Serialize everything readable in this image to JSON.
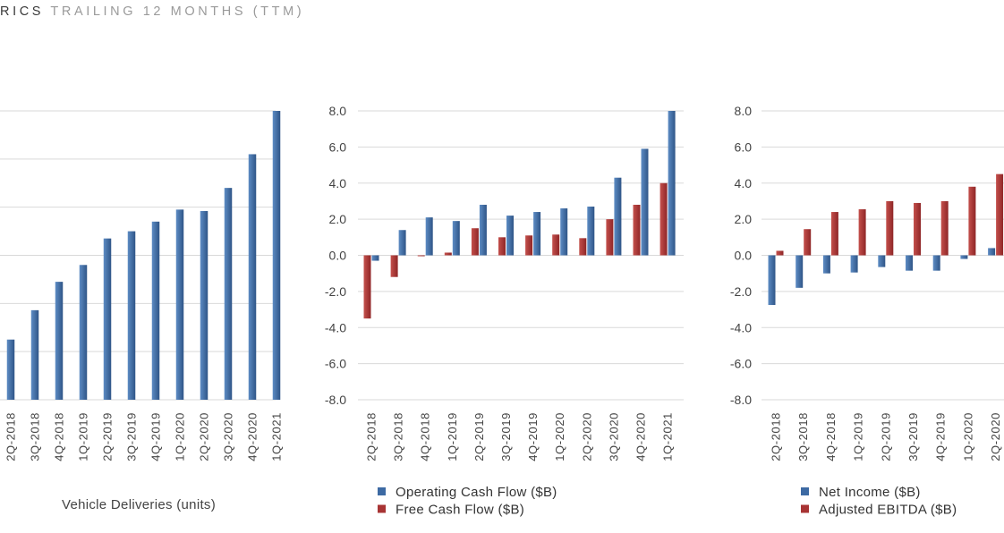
{
  "header": {
    "title_strong": "RICS",
    "title_light": "TRAILING 12 MONTHS (TTM)"
  },
  "colors": {
    "blue": "#3d6aa3",
    "red": "#a83434",
    "grid": "#d9d9d9"
  },
  "chart_data": [
    {
      "type": "bar",
      "xlabel": "Vehicle Deliveries (units)",
      "categories": [
        "2Q-2018",
        "3Q-2018",
        "4Q-2018",
        "1Q-2019",
        "2Q-2019",
        "3Q-2019",
        "4Q-2019",
        "1Q-2020",
        "2Q-2020",
        "3Q-2020",
        "4Q-2020",
        "1Q-2021"
      ],
      "series": [
        {
          "values": [
            125000,
            186000,
            245000,
            280000,
            335000,
            350000,
            370000,
            395000,
            392000,
            440000,
            510000,
            600000
          ]
        }
      ],
      "ylim": [
        0,
        600000
      ],
      "grid": true
    },
    {
      "type": "bar",
      "categories": [
        "2Q-2018",
        "3Q-2018",
        "4Q-2018",
        "1Q-2019",
        "2Q-2019",
        "3Q-2019",
        "4Q-2019",
        "1Q-2020",
        "2Q-2020",
        "3Q-2020",
        "4Q-2020",
        "1Q-2021"
      ],
      "series": [
        {
          "name": "Operating Cash Flow ($B)",
          "values": [
            -0.3,
            1.4,
            2.1,
            1.9,
            2.8,
            2.2,
            2.4,
            2.6,
            2.7,
            4.3,
            5.9,
            8.0
          ]
        },
        {
          "name": "Free Cash Flow ($B)",
          "values": [
            -3.5,
            -1.2,
            -0.05,
            0.15,
            1.5,
            1.0,
            1.1,
            1.15,
            0.95,
            2.0,
            2.8,
            4.0
          ]
        }
      ],
      "yticks": [
        "8.0",
        "6.0",
        "4.0",
        "2.0",
        "0.0",
        "-2.0",
        "-4.0",
        "-6.0",
        "-8.0"
      ],
      "ylim": [
        -8,
        8
      ],
      "grid": true,
      "legend": "bottom"
    },
    {
      "type": "bar",
      "categories": [
        "2Q-2018",
        "3Q-2018",
        "4Q-2018",
        "1Q-2019",
        "2Q-2019",
        "3Q-2019",
        "4Q-2019",
        "1Q-2020",
        "2Q-2020"
      ],
      "series": [
        {
          "name": "Net Income ($B)",
          "values": [
            -2.75,
            -1.8,
            -1.0,
            -0.95,
            -0.65,
            -0.85,
            -0.85,
            -0.2,
            0.4
          ]
        },
        {
          "name": "Adjusted EBITDA ($B)",
          "values": [
            0.25,
            1.45,
            2.4,
            2.55,
            3.0,
            2.9,
            3.0,
            3.8,
            4.5
          ]
        }
      ],
      "yticks": [
        "8.0",
        "6.0",
        "4.0",
        "2.0",
        "0.0",
        "-2.0",
        "-4.0",
        "-6.0",
        "-8.0"
      ],
      "ylim": [
        -8,
        8
      ],
      "grid": true,
      "legend": "bottom"
    }
  ]
}
